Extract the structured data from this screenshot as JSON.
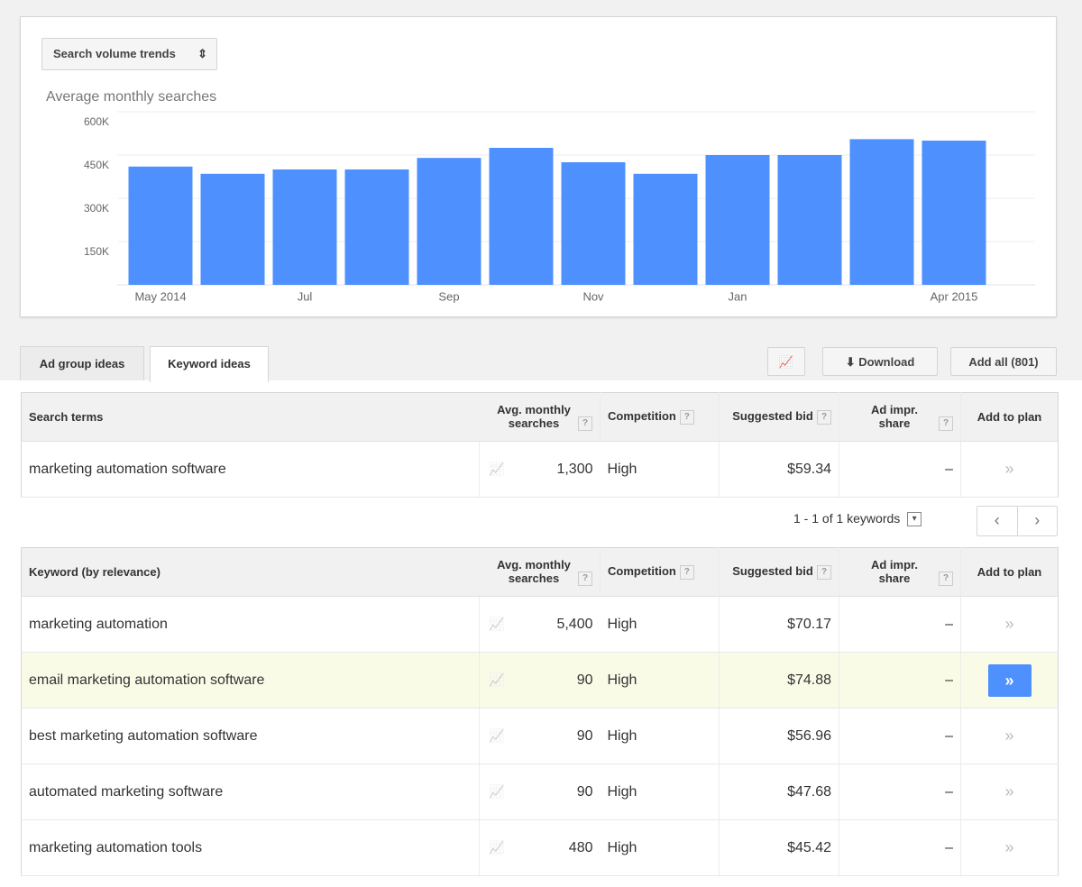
{
  "dropdown": "Search volume trends",
  "chart_data": {
    "type": "bar",
    "title": "Average monthly searches",
    "categories": [
      "May 2014",
      null,
      "Jul",
      null,
      "Sep",
      null,
      "Nov",
      null,
      "Jan",
      null,
      null,
      "Apr 2015"
    ],
    "values": [
      410000,
      385000,
      400000,
      400000,
      440000,
      475000,
      425000,
      385000,
      450000,
      450000,
      505000,
      500000
    ],
    "color": "#4d90fe",
    "ylim": [
      0,
      600000
    ],
    "yticks": [
      {
        "value": 150000,
        "label": "150K"
      },
      {
        "value": 300000,
        "label": "300K"
      },
      {
        "value": 450000,
        "label": "450K"
      },
      {
        "value": 600000,
        "label": "600K"
      }
    ],
    "grid": true
  },
  "tabs": [
    "Ad group ideas",
    "Keyword ideas"
  ],
  "buttons": {
    "download": "Download",
    "add_all": "Add all (801)"
  },
  "search_table": {
    "headers": [
      "Search terms",
      "Avg. monthly searches",
      "Competition",
      "Suggested bid",
      "Ad impr. share",
      "Add to plan"
    ],
    "rows": [
      [
        "marketing automation software",
        "1,300",
        "High",
        "$59.34",
        "–"
      ]
    ]
  },
  "pagination": "1 - 1 of 1 keywords",
  "keyword_table": {
    "headers": [
      "Keyword (by relevance)",
      "Avg. monthly searches",
      "Competition",
      "Suggested bid",
      "Ad impr. share",
      "Add to plan"
    ],
    "rows": [
      [
        "marketing automation",
        "5,400",
        "High",
        "$70.17",
        "–"
      ],
      [
        "email marketing automation software",
        "90",
        "High",
        "$74.88",
        "–"
      ],
      [
        "best marketing automation software",
        "90",
        "High",
        "$56.96",
        "–"
      ],
      [
        "automated marketing software",
        "90",
        "High",
        "$47.68",
        "–"
      ],
      [
        "marketing automation tools",
        "480",
        "High",
        "$45.42",
        "–"
      ]
    ]
  }
}
